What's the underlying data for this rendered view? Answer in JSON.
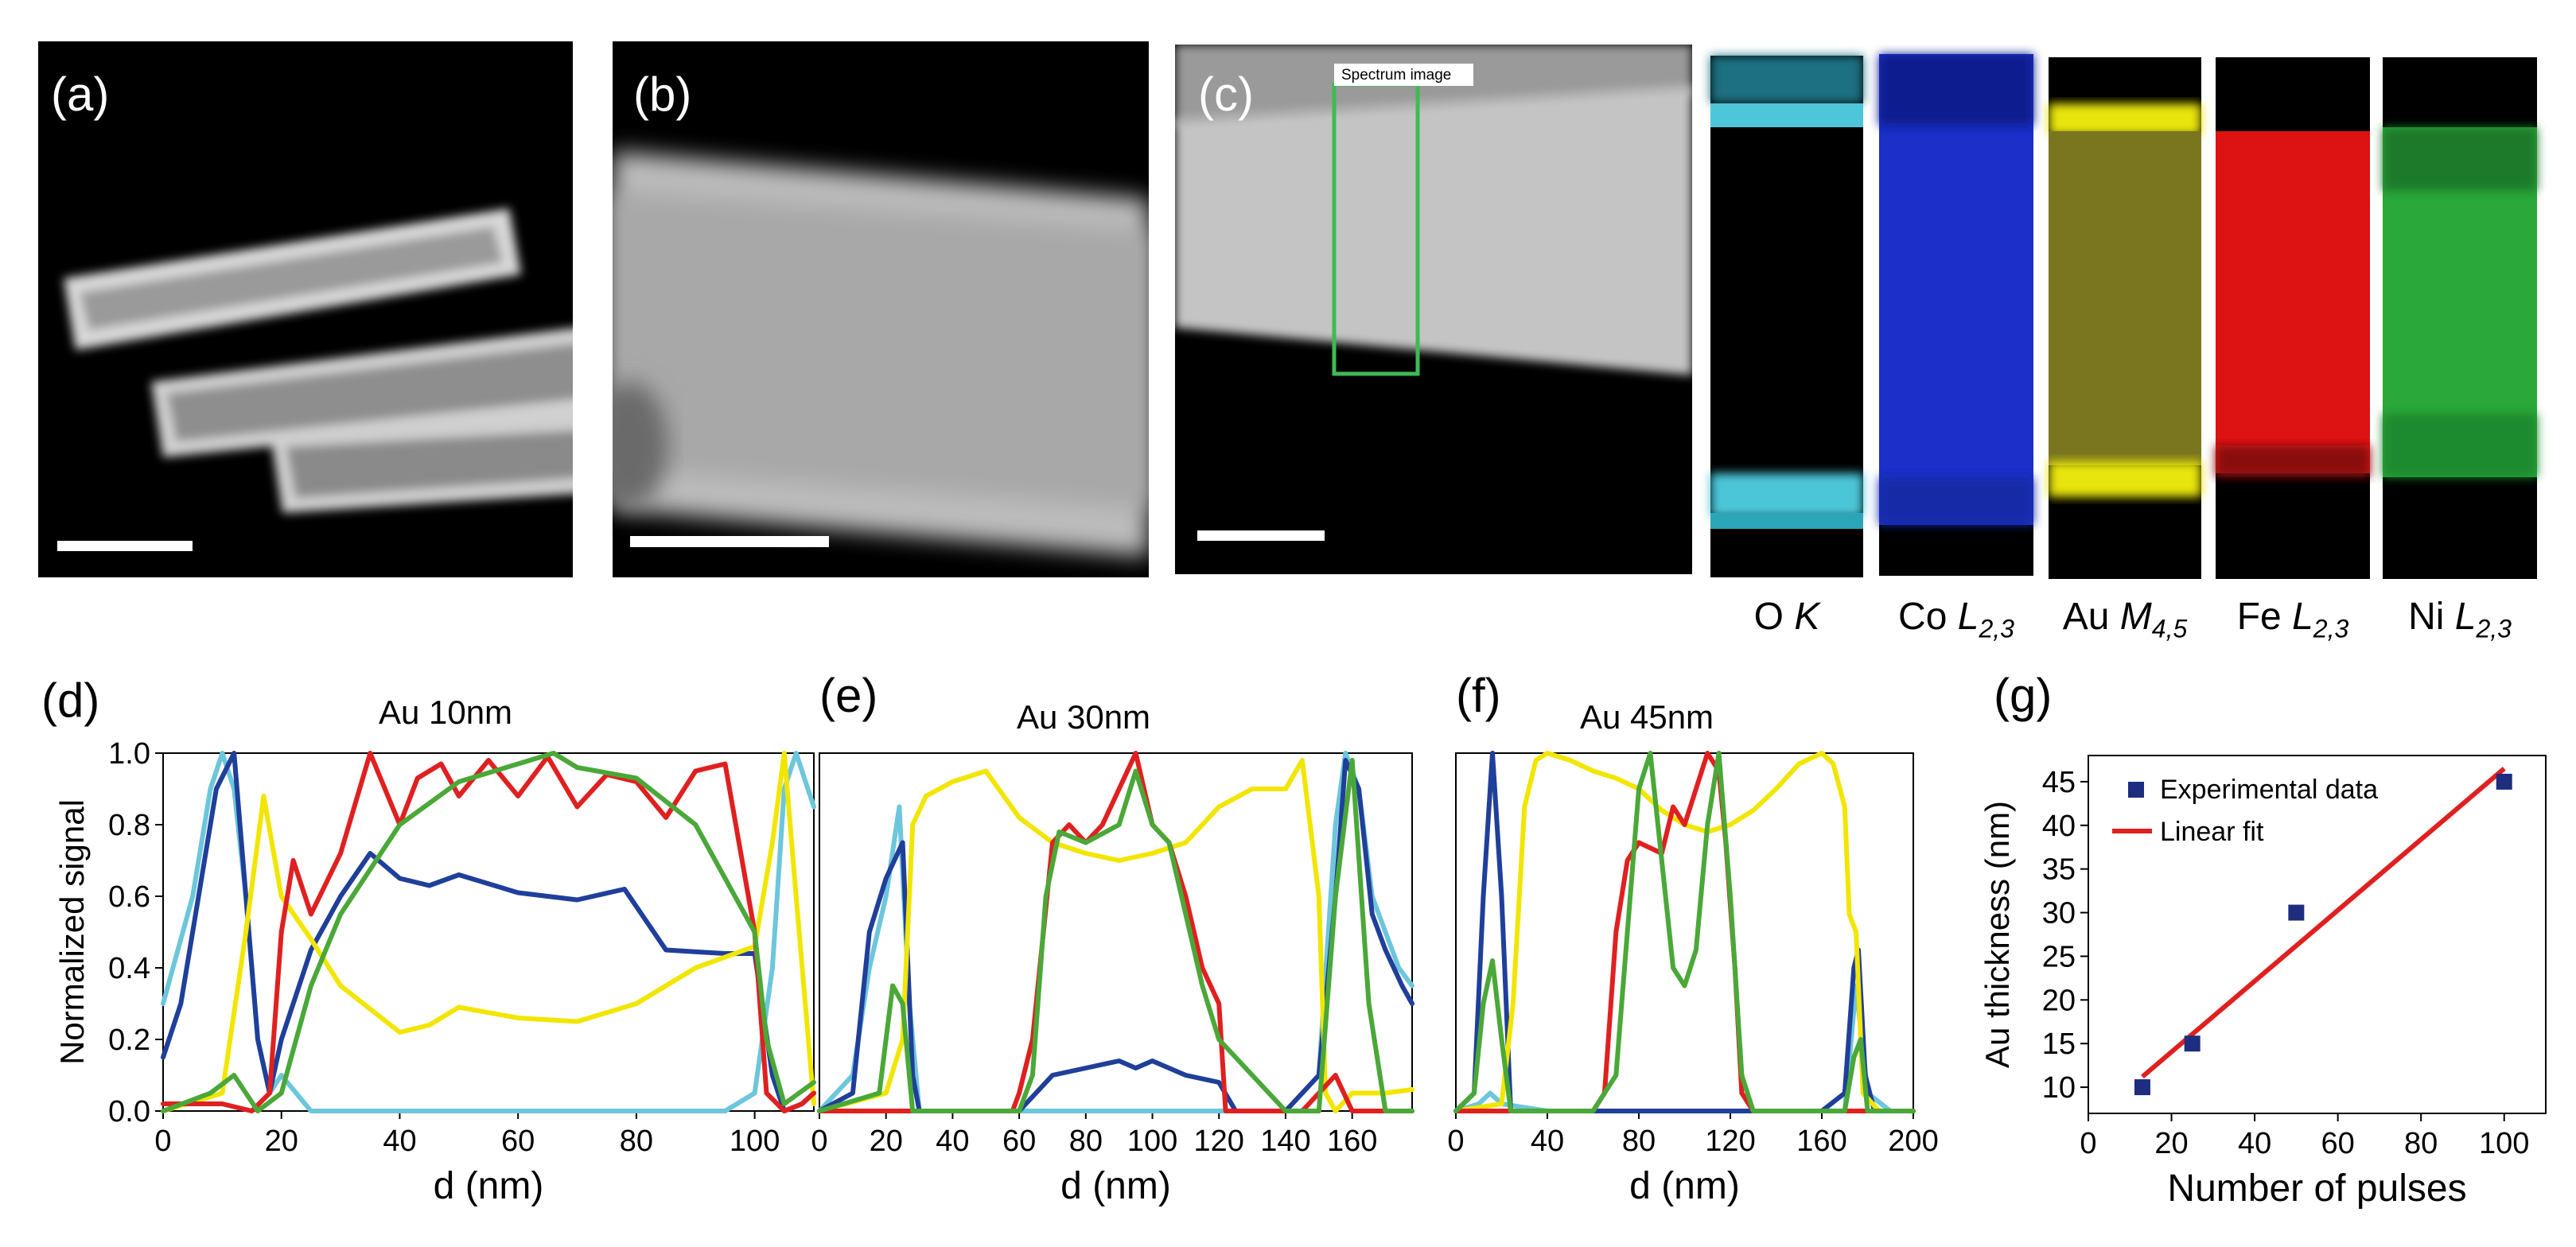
{
  "figure": {
    "labels": {
      "a": "(a)",
      "b": "(b)",
      "c": "(c)",
      "d": "(d)",
      "e": "(e)",
      "f": "(f)",
      "g": "(g)"
    },
    "spectrum_box_label": "Spectrum image",
    "maps": [
      {
        "element": "O",
        "edge": "K",
        "sub": ""
      },
      {
        "element": "Co",
        "edge": "L",
        "sub": "2,3"
      },
      {
        "element": "Au",
        "edge": "M",
        "sub": "4,5"
      },
      {
        "element": "Fe",
        "edge": "L",
        "sub": "2,3"
      },
      {
        "element": "Ni",
        "edge": "L",
        "sub": "2,3"
      }
    ],
    "series_colors": {
      "O": "#6cc6dc",
      "Co": "#1f3f9a",
      "Au": "#f2e600",
      "Fe": "#e02020",
      "Ni": "#4aa838"
    }
  },
  "chart_data": [
    {
      "type": "line",
      "title": "Au 10nm",
      "xlabel": "d (nm)",
      "ylabel": "Normalized signal",
      "xlim": [
        0,
        110
      ],
      "ylim": [
        0,
        1.0
      ],
      "xticks": [
        "0",
        "20",
        "40",
        "60",
        "80",
        "100"
      ],
      "yticks": [
        "0.0",
        "0.2",
        "0.4",
        "0.6",
        "0.8",
        "1.0"
      ],
      "series": [
        {
          "name": "O",
          "x": [
            0,
            5,
            8,
            10,
            12,
            14,
            16,
            18,
            20,
            25,
            30,
            40,
            60,
            80,
            95,
            100,
            103,
            105,
            107,
            110
          ],
          "y": [
            0.3,
            0.6,
            0.9,
            1.0,
            0.9,
            0.6,
            0.2,
            0.05,
            0.1,
            0.0,
            0.0,
            0.0,
            0.0,
            0.0,
            0.0,
            0.05,
            0.4,
            0.9,
            1.0,
            0.85
          ]
        },
        {
          "name": "Co",
          "x": [
            0,
            3,
            6,
            9,
            12,
            14,
            16,
            18,
            20,
            25,
            30,
            35,
            40,
            45,
            50,
            60,
            70,
            78,
            85,
            95,
            100,
            103,
            105,
            108,
            110
          ],
          "y": [
            0.15,
            0.3,
            0.6,
            0.9,
            1.0,
            0.6,
            0.2,
            0.05,
            0.2,
            0.45,
            0.6,
            0.72,
            0.65,
            0.63,
            0.66,
            0.61,
            0.59,
            0.62,
            0.45,
            0.44,
            0.44,
            0.1,
            0.0,
            0.02,
            0.05
          ]
        },
        {
          "name": "Au",
          "x": [
            0,
            10,
            14,
            17,
            20,
            25,
            30,
            40,
            45,
            50,
            60,
            70,
            80,
            90,
            100,
            103,
            105,
            107,
            110
          ],
          "y": [
            0.0,
            0.05,
            0.5,
            0.88,
            0.6,
            0.48,
            0.35,
            0.22,
            0.24,
            0.29,
            0.26,
            0.25,
            0.3,
            0.4,
            0.46,
            0.75,
            1.0,
            0.6,
            0.02
          ]
        },
        {
          "name": "Fe",
          "x": [
            0,
            10,
            15,
            18,
            20,
            22,
            25,
            30,
            35,
            40,
            43,
            47,
            50,
            55,
            60,
            65,
            70,
            75,
            80,
            85,
            90,
            95,
            100,
            102,
            105,
            108,
            110
          ],
          "y": [
            0.02,
            0.02,
            0.0,
            0.05,
            0.5,
            0.7,
            0.55,
            0.72,
            1.0,
            0.8,
            0.93,
            0.97,
            0.88,
            0.98,
            0.88,
            0.99,
            0.85,
            0.94,
            0.92,
            0.82,
            0.95,
            0.97,
            0.5,
            0.05,
            0.0,
            0.02,
            0.05
          ]
        },
        {
          "name": "Ni",
          "x": [
            0,
            8,
            12,
            16,
            20,
            25,
            30,
            40,
            50,
            60,
            66,
            70,
            80,
            90,
            100,
            102,
            105,
            110
          ],
          "y": [
            0.0,
            0.05,
            0.1,
            0.0,
            0.05,
            0.35,
            0.55,
            0.8,
            0.92,
            0.97,
            1.0,
            0.96,
            0.93,
            0.8,
            0.5,
            0.2,
            0.02,
            0.08
          ]
        }
      ]
    },
    {
      "type": "line",
      "title": "Au 30nm",
      "xlabel": "d (nm)",
      "ylabel": "",
      "xlim": [
        0,
        178
      ],
      "ylim": [
        0,
        1.0
      ],
      "xticks": [
        "0",
        "20",
        "40",
        "60",
        "80",
        "100",
        "120",
        "140",
        "160"
      ],
      "yticks": [],
      "series": [
        {
          "name": "O",
          "x": [
            0,
            10,
            15,
            20,
            24,
            27,
            30,
            40,
            100,
            140,
            150,
            155,
            158,
            162,
            166,
            170,
            174,
            178
          ],
          "y": [
            0.0,
            0.1,
            0.4,
            0.6,
            0.85,
            0.3,
            0.0,
            0.0,
            0.0,
            0.0,
            0.1,
            0.8,
            1.0,
            0.9,
            0.6,
            0.5,
            0.4,
            0.35
          ]
        },
        {
          "name": "Co",
          "x": [
            0,
            10,
            15,
            20,
            25,
            28,
            30,
            40,
            60,
            65,
            70,
            80,
            90,
            95,
            100,
            110,
            120,
            125,
            140,
            150,
            155,
            158,
            162,
            166,
            170,
            175,
            178
          ],
          "y": [
            0.0,
            0.05,
            0.5,
            0.65,
            0.75,
            0.1,
            0.0,
            0.0,
            0.0,
            0.05,
            0.1,
            0.12,
            0.14,
            0.12,
            0.14,
            0.1,
            0.08,
            0.0,
            0.0,
            0.1,
            0.6,
            0.98,
            0.9,
            0.55,
            0.45,
            0.35,
            0.3
          ]
        },
        {
          "name": "Au",
          "x": [
            0,
            20,
            25,
            28,
            32,
            40,
            50,
            60,
            70,
            80,
            90,
            100,
            110,
            120,
            130,
            140,
            145,
            150,
            152,
            155,
            160,
            170,
            178
          ],
          "y": [
            0.0,
            0.05,
            0.2,
            0.8,
            0.88,
            0.92,
            0.95,
            0.82,
            0.75,
            0.72,
            0.7,
            0.72,
            0.75,
            0.85,
            0.9,
            0.9,
            0.98,
            0.6,
            0.05,
            0.0,
            0.05,
            0.05,
            0.06
          ]
        },
        {
          "name": "Fe",
          "x": [
            0,
            40,
            58,
            60,
            64,
            70,
            75,
            80,
            85,
            90,
            95,
            100,
            105,
            110,
            115,
            120,
            122,
            145,
            155,
            160,
            178
          ],
          "y": [
            0.0,
            0.0,
            0.0,
            0.05,
            0.2,
            0.75,
            0.8,
            0.75,
            0.8,
            0.9,
            1.0,
            0.8,
            0.75,
            0.6,
            0.4,
            0.3,
            0.0,
            0.0,
            0.1,
            0.0,
            0.0
          ]
        },
        {
          "name": "Ni",
          "x": [
            0,
            18,
            22,
            25,
            28,
            40,
            60,
            64,
            68,
            72,
            80,
            90,
            95,
            100,
            105,
            110,
            115,
            120,
            140,
            150,
            155,
            160,
            165,
            170,
            178
          ],
          "y": [
            0.0,
            0.05,
            0.35,
            0.3,
            0.0,
            0.0,
            0.0,
            0.1,
            0.6,
            0.78,
            0.75,
            0.8,
            0.95,
            0.8,
            0.75,
            0.55,
            0.35,
            0.2,
            0.0,
            0.0,
            0.6,
            0.98,
            0.3,
            0.0,
            0.0
          ]
        }
      ]
    },
    {
      "type": "line",
      "title": "Au 45nm",
      "xlabel": "d (nm)",
      "ylabel": "",
      "xlim": [
        0,
        200
      ],
      "ylim": [
        0,
        1.0
      ],
      "xticks": [
        "0",
        "40",
        "80",
        "120",
        "160",
        "200"
      ],
      "yticks": [],
      "series": [
        {
          "name": "O",
          "x": [
            0,
            10,
            15,
            20,
            40,
            160,
            170,
            175,
            180,
            190,
            200
          ],
          "y": [
            0.0,
            0.02,
            0.05,
            0.02,
            0.0,
            0.0,
            0.0,
            0.35,
            0.05,
            0.0,
            0.0
          ]
        },
        {
          "name": "Co",
          "x": [
            0,
            8,
            12,
            16,
            20,
            24,
            30,
            60,
            100,
            160,
            170,
            174,
            176,
            179,
            183,
            190,
            200
          ],
          "y": [
            0.0,
            0.05,
            0.6,
            1.0,
            0.6,
            0.0,
            0.0,
            0.0,
            0.0,
            0.0,
            0.05,
            0.4,
            0.45,
            0.1,
            0.0,
            0.0,
            0.0
          ]
        },
        {
          "name": "Au",
          "x": [
            0,
            20,
            25,
            30,
            35,
            40,
            50,
            60,
            70,
            80,
            90,
            100,
            110,
            120,
            130,
            140,
            150,
            160,
            165,
            170,
            172,
            175,
            178,
            185,
            200
          ],
          "y": [
            0.0,
            0.02,
            0.3,
            0.85,
            0.98,
            1.0,
            0.98,
            0.95,
            0.93,
            0.9,
            0.84,
            0.8,
            0.78,
            0.8,
            0.84,
            0.9,
            0.97,
            1.0,
            0.97,
            0.85,
            0.55,
            0.5,
            0.05,
            0.0,
            0.0
          ]
        },
        {
          "name": "Fe",
          "x": [
            0,
            60,
            65,
            70,
            75,
            80,
            90,
            95,
            100,
            105,
            110,
            115,
            118,
            122,
            125,
            130,
            200
          ],
          "y": [
            0.0,
            0.0,
            0.05,
            0.5,
            0.7,
            0.75,
            0.72,
            0.85,
            0.8,
            0.9,
            1.0,
            0.95,
            0.75,
            0.4,
            0.05,
            0.0,
            0.0
          ]
        },
        {
          "name": "Ni",
          "x": [
            0,
            8,
            12,
            16,
            20,
            24,
            30,
            60,
            70,
            75,
            80,
            85,
            90,
            95,
            100,
            105,
            110,
            115,
            120,
            125,
            130,
            170,
            174,
            177,
            180,
            200
          ],
          "y": [
            0.0,
            0.05,
            0.3,
            0.42,
            0.2,
            0.0,
            0.0,
            0.0,
            0.1,
            0.5,
            0.9,
            1.0,
            0.7,
            0.4,
            0.35,
            0.45,
            0.8,
            1.0,
            0.6,
            0.1,
            0.0,
            0.0,
            0.15,
            0.2,
            0.0,
            0.0
          ]
        }
      ]
    },
    {
      "type": "scatter",
      "title": "",
      "xlabel": "Number of pulses",
      "ylabel": "Au thickness (nm)",
      "xlim": [
        0,
        110
      ],
      "ylim": [
        7,
        48
      ],
      "xticks": [
        "0",
        "20",
        "40",
        "60",
        "80",
        "100"
      ],
      "yticks": [
        "10",
        "15",
        "20",
        "25",
        "30",
        "35",
        "40",
        "45"
      ],
      "legend": [
        "Experimental data",
        "Linear fit"
      ],
      "points": {
        "x": [
          13,
          25,
          50,
          100
        ],
        "y": [
          10,
          15,
          30,
          45
        ]
      },
      "fit": {
        "x": [
          13,
          100
        ],
        "y": [
          11.2,
          46.5
        ]
      }
    }
  ]
}
